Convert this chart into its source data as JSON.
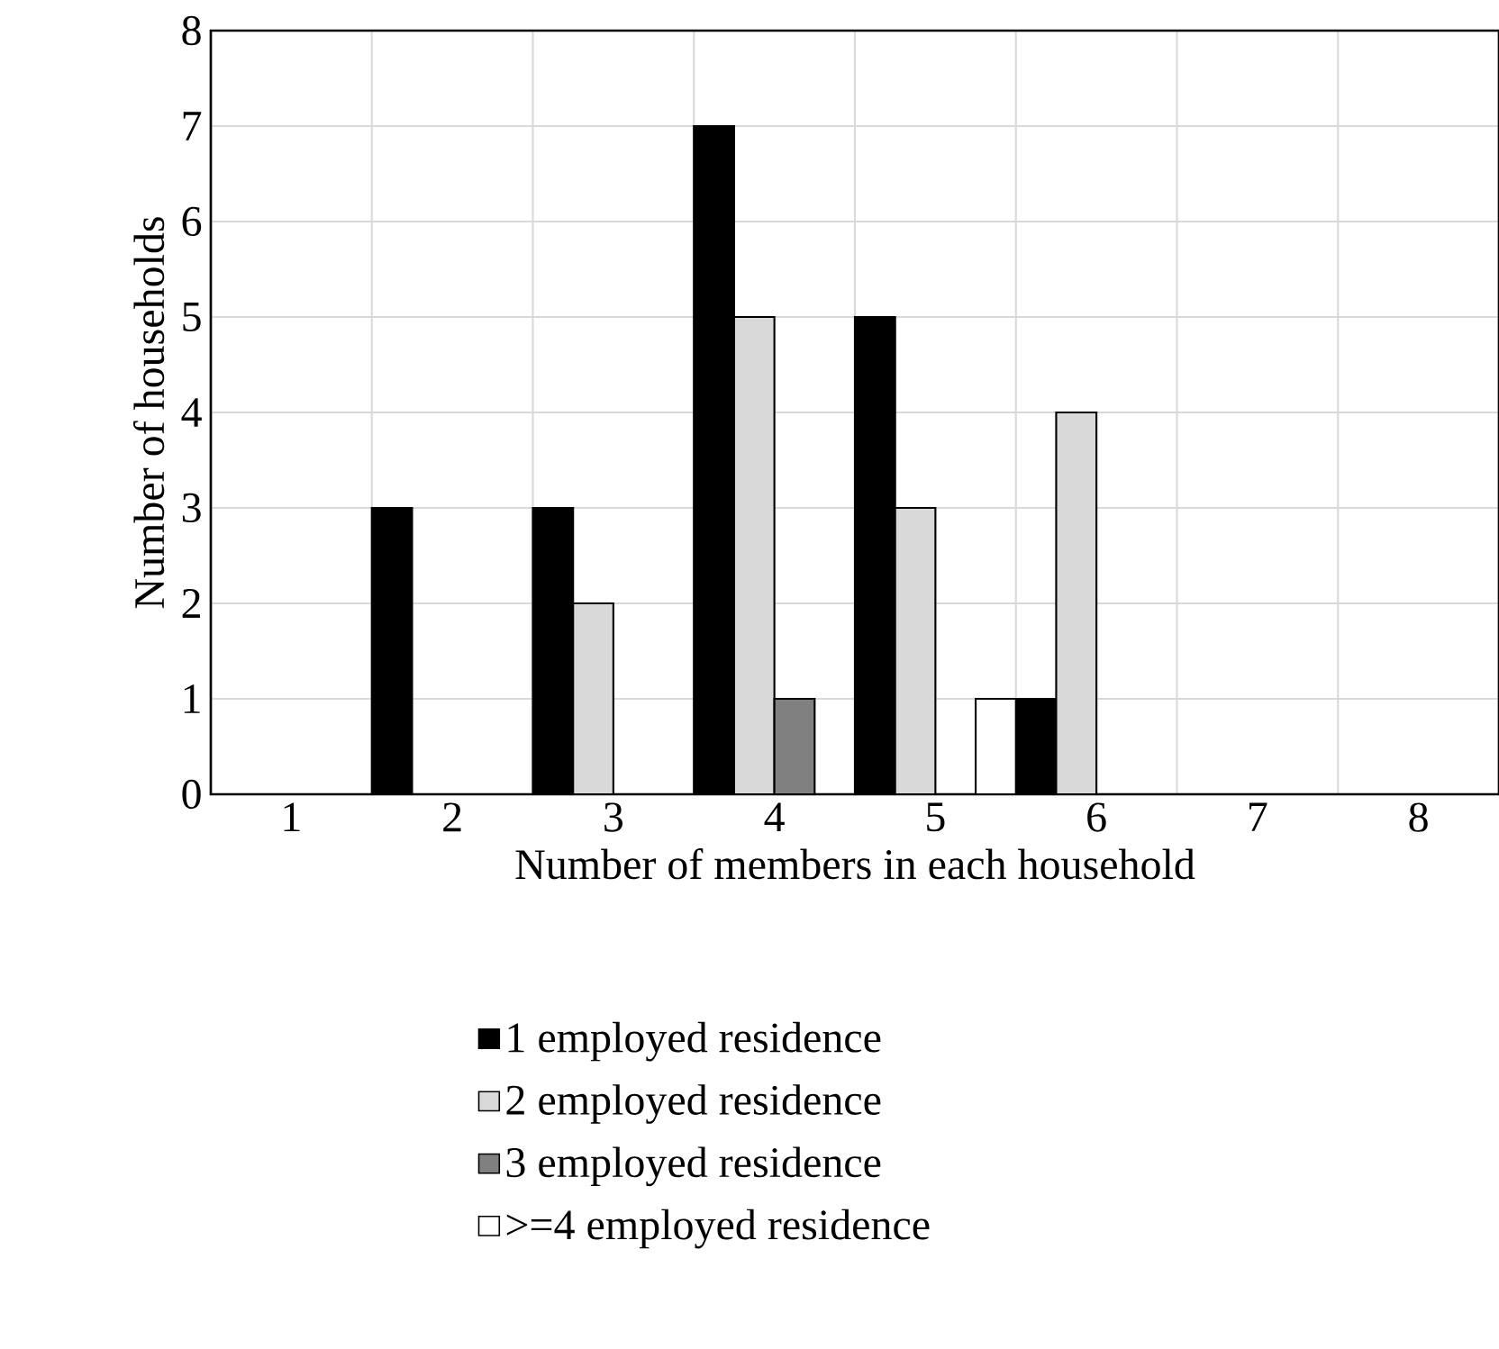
{
  "chart_data": {
    "type": "bar",
    "xlabel": "Number of members in each household",
    "ylabel": "Number of households",
    "categories": [
      "1",
      "2",
      "3",
      "4",
      "5",
      "6",
      "7",
      "8"
    ],
    "series": [
      {
        "name": "1 employed residence",
        "color": "#000000",
        "values": [
          0,
          3,
          3,
          7,
          5,
          1,
          0,
          0
        ]
      },
      {
        "name": "2 employed residence",
        "color": "#d9d9d9",
        "values": [
          0,
          0,
          2,
          5,
          3,
          4,
          0,
          0
        ]
      },
      {
        "name": "3 employed residence",
        "color": "#808080",
        "values": [
          0,
          0,
          0,
          1,
          0,
          0,
          0,
          0
        ]
      },
      {
        "name": ">=4 employed residence",
        "color": "#ffffff",
        "values": [
          0,
          0,
          0,
          0,
          1,
          0,
          0,
          0
        ]
      }
    ],
    "ylim": [
      0,
      8
    ],
    "yticks": [
      0,
      1,
      2,
      3,
      4,
      5,
      6,
      7,
      8
    ],
    "grid": true,
    "legend": "bottom"
  }
}
